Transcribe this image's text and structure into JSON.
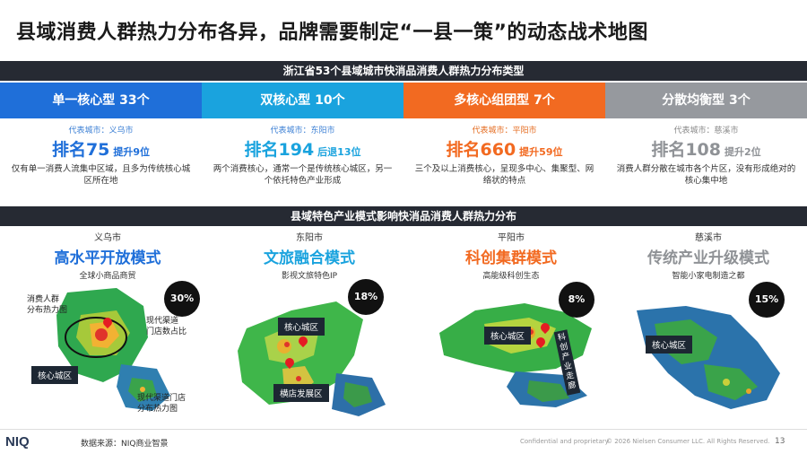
{
  "title": "县域消费人群热力分布各异，品牌需要制定“一县一策”的动态战术地图",
  "section1_title": "浙江省53个县域城市快消品消费人群热力分布类型",
  "types": [
    {
      "label": "单一核心型 33个",
      "city": "代表城市：义乌市",
      "rank": "排名75",
      "change": "提升9位",
      "desc": "仅有单一消费人流集中区域，且多为传统核心城区所在地"
    },
    {
      "label": "双核心型 10个",
      "city": "代表城市：东阳市",
      "rank": "排名194",
      "change": "后退13位",
      "desc": "两个消费核心，通常一个是传统核心城区，另一个依托特色产业形成"
    },
    {
      "label": "多核心组团型 7个",
      "city": "代表城市：平阳市",
      "rank": "排名660",
      "change": "提升59位",
      "desc": "三个及以上消费核心，呈现多中心、集聚型、网络状的特点"
    },
    {
      "label": "分散均衡型 3个",
      "city": "代表城市：慈溪市",
      "rank": "排名108",
      "change": "提升2位",
      "desc": "消费人群分散在城市各个片区，没有形成绝对的核心集中地"
    }
  ],
  "section2_title": "县域特色产业模式影响快消品消费人群热力分布",
  "modes": [
    {
      "city": "义乌市",
      "title": "高水平开放模式",
      "subtitle": "全球小商品商贸",
      "percent": "30%",
      "tag1": "核心城区",
      "note1": "消费人群\n分布热力图",
      "note2": "现代渠道\n门店数占比",
      "note3": "现代渠道门店\n分布热力图"
    },
    {
      "city": "东阳市",
      "title": "文旅融合模式",
      "subtitle": "影视文旅特色IP",
      "percent": "18%",
      "tag1": "核心城区",
      "tag2": "横店发展区"
    },
    {
      "city": "平阳市",
      "title": "科创集群模式",
      "subtitle": "高能级科创生态",
      "percent": "8%",
      "tag1": "核心城区",
      "tag2": "科创产业走廊"
    },
    {
      "city": "慈溪市",
      "title": "传统产业升级模式",
      "subtitle": "智能小家电制造之都",
      "percent": "15%",
      "tag1": "核心城区"
    }
  ],
  "footer": {
    "logo": "NIQ",
    "source": "数据来源：NIQ商业智景",
    "confidential": "Confidential and proprietary",
    "copyright": "© 2026 Nielsen Consumer LLC. All Rights Reserved.",
    "page": "13"
  },
  "colors": {
    "blue": "#1f6fd9",
    "cyan": "#1aa3de",
    "orange": "#f26a21",
    "grey": "#96999e",
    "dark": "#262a33"
  }
}
